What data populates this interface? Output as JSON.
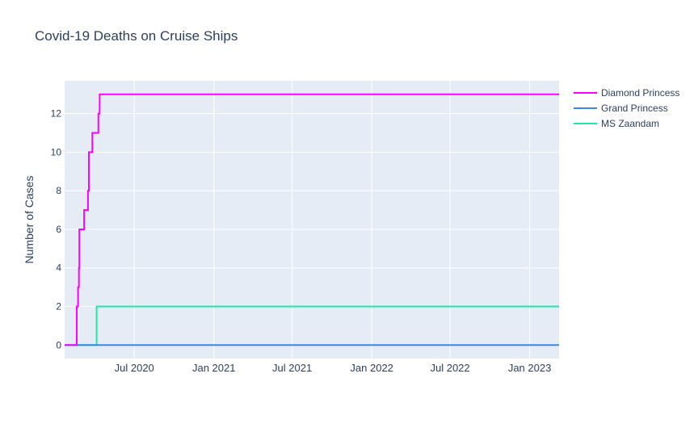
{
  "chart_data": {
    "type": "line",
    "title": "Covid-19 Deaths on Cruise Ships",
    "xlabel": "",
    "ylabel": "Number of Cases",
    "x_range": [
      "2020-01-22",
      "2023-03-10"
    ],
    "ylim": [
      -0.7,
      13.7
    ],
    "y_ticks": [
      0,
      2,
      4,
      6,
      8,
      10,
      12
    ],
    "x_ticks": [
      {
        "date": "2020-07-01",
        "label": "Jul 2020"
      },
      {
        "date": "2021-01-01",
        "label": "Jan 2021"
      },
      {
        "date": "2021-07-01",
        "label": "Jul 2021"
      },
      {
        "date": "2022-01-01",
        "label": "Jan 2022"
      },
      {
        "date": "2022-07-01",
        "label": "Jul 2022"
      },
      {
        "date": "2023-01-01",
        "label": "Jan 2023"
      }
    ],
    "grid": true,
    "legend_position": "right",
    "line_shape": "step",
    "series": [
      {
        "name": "Diamond Princess",
        "color": "#ff00ff",
        "points": [
          [
            "2020-01-22",
            0
          ],
          [
            "2020-02-19",
            2
          ],
          [
            "2020-02-22",
            3
          ],
          [
            "2020-02-24",
            4
          ],
          [
            "2020-02-25",
            6
          ],
          [
            "2020-03-07",
            7
          ],
          [
            "2020-03-16",
            8
          ],
          [
            "2020-03-18",
            10
          ],
          [
            "2020-03-26",
            11
          ],
          [
            "2020-04-09",
            12
          ],
          [
            "2020-04-12",
            13
          ],
          [
            "2023-03-10",
            13
          ]
        ]
      },
      {
        "name": "Grand Princess",
        "color": "#3a86e8",
        "points": [
          [
            "2020-01-22",
            0
          ],
          [
            "2023-03-10",
            0
          ]
        ]
      },
      {
        "name": "MS Zaandam",
        "color": "#1de9a6",
        "points": [
          [
            "2020-01-22",
            0
          ],
          [
            "2020-04-04",
            0
          ],
          [
            "2020-04-05",
            2
          ],
          [
            "2023-03-10",
            2
          ]
        ]
      }
    ]
  }
}
